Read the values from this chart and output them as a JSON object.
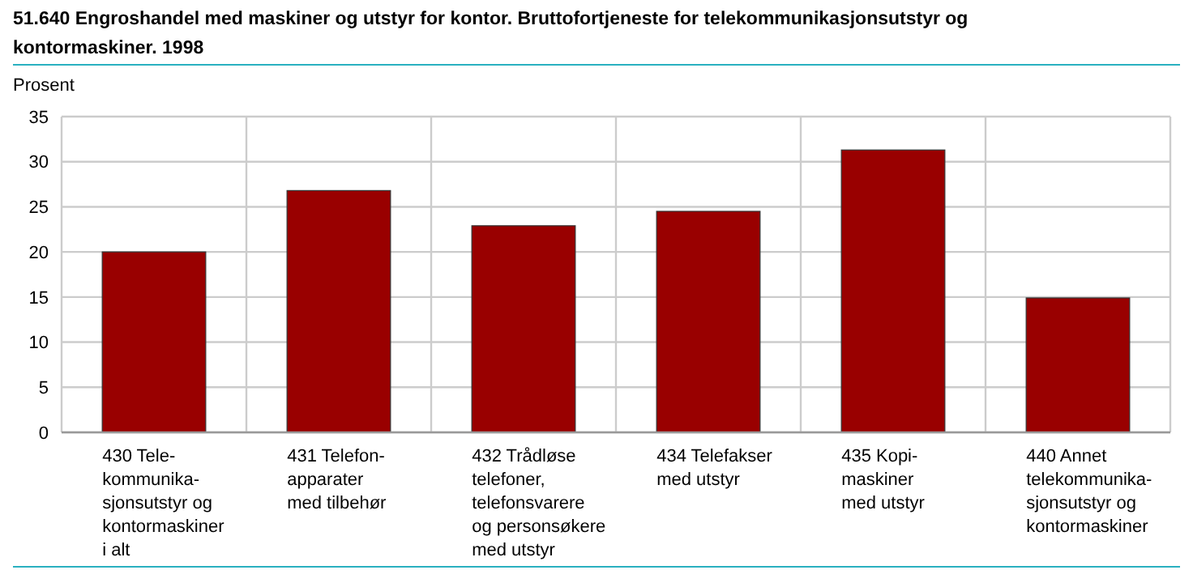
{
  "chart_data": {
    "type": "bar",
    "title": "51.640 Engroshandel med maskiner og utstyr for kontor. Bruttofortjeneste for telekommunikasjonsutstyr og\nkontormaskiner. 1998",
    "ylabel": "Prosent",
    "categories": [
      "430 Tele-\nkommunika-\nsjonsutstyr og\nkontormaskiner\ni alt",
      "431 Telefon-\napparater\nmed tilbehør",
      "432 Trådløse\ntelefoner,\ntelefonsvarere\nog personsøkere\nmed utstyr",
      "434 Telefakser\nmed utstyr",
      "435 Kopi-\nmaskiner\nmed utstyr",
      "440 Annet\ntelekommunika-\nsjonsutstyr og\nkontormaskiner"
    ],
    "values": [
      20.0,
      26.8,
      22.9,
      24.5,
      31.3,
      14.9
    ],
    "color": "#990000",
    "ylim": [
      0,
      35
    ],
    "yticks": [
      0,
      5,
      10,
      15,
      20,
      25,
      30,
      35
    ],
    "grid": true
  }
}
